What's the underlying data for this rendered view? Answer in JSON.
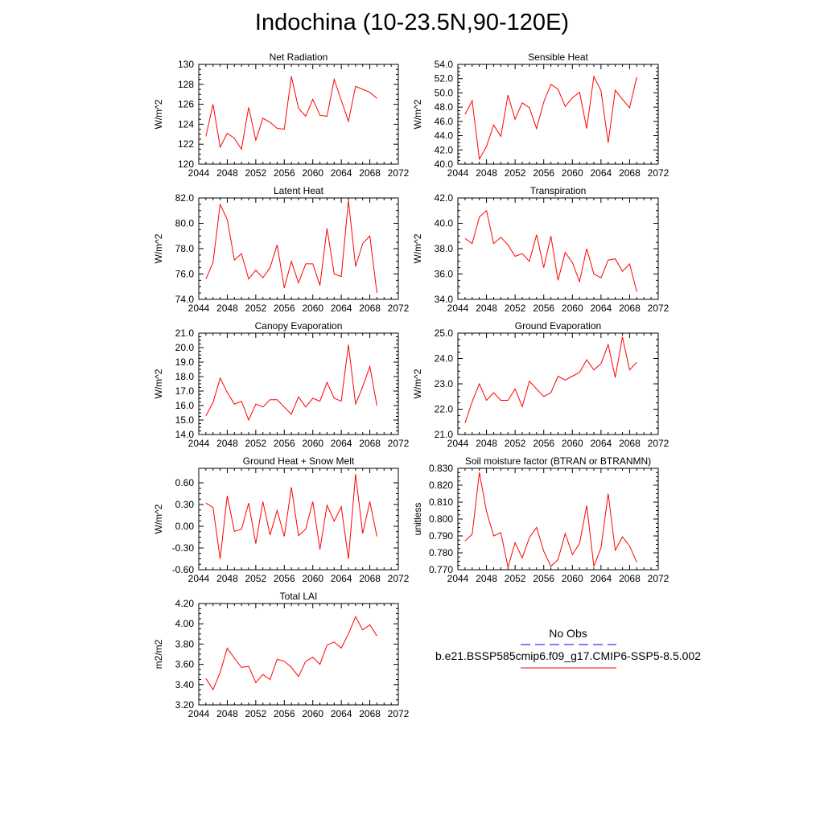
{
  "figure": {
    "title": "Indochina (10-23.5N,90-120E)",
    "legend": {
      "items": [
        {
          "label": "No Obs",
          "color": "#0000ff",
          "style": "dashed"
        },
        {
          "label": "b.e21.BSSP585cmip6.f09_g17.CMIP6-SSP5-8.5.002",
          "color": "#ff0000",
          "style": "solid"
        }
      ]
    }
  },
  "chart_data": [
    {
      "type": "line",
      "title": "Net Radiation",
      "ylabel": "W/m^2",
      "xlim": [
        2044,
        2072
      ],
      "ylim": [
        120,
        130
      ],
      "xticks": [
        2044,
        2048,
        2052,
        2056,
        2060,
        2064,
        2068,
        2072
      ],
      "yticks": [
        120,
        122,
        124,
        126,
        128,
        130
      ],
      "ytick_labels": [
        "120",
        "122",
        "124",
        "126",
        "128",
        "130"
      ],
      "x": [
        2045,
        2046,
        2047,
        2048,
        2049,
        2050,
        2051,
        2052,
        2053,
        2054,
        2055,
        2056,
        2057,
        2058,
        2059,
        2060,
        2061,
        2062,
        2063,
        2064,
        2065,
        2066,
        2067,
        2068,
        2069
      ],
      "series": [
        {
          "color": "#ff0000",
          "values": [
            122.8,
            126.0,
            121.7,
            123.1,
            122.6,
            121.5,
            125.7,
            122.4,
            124.6,
            124.2,
            123.6,
            123.5,
            128.8,
            125.6,
            124.8,
            126.5,
            124.9,
            124.8,
            128.5,
            126.4,
            124.3,
            127.8,
            127.5,
            127.2,
            126.6
          ]
        }
      ]
    },
    {
      "type": "line",
      "title": "Sensible Heat",
      "ylabel": "W/m^2",
      "xlim": [
        2044,
        2072
      ],
      "ylim": [
        40,
        54
      ],
      "xticks": [
        2044,
        2048,
        2052,
        2056,
        2060,
        2064,
        2068,
        2072
      ],
      "yticks": [
        40,
        42,
        44,
        46,
        48,
        50,
        52,
        54
      ],
      "ytick_labels": [
        "40.0",
        "42.0",
        "44.0",
        "46.0",
        "48.0",
        "50.0",
        "52.0",
        "54.0"
      ],
      "x": [
        2045,
        2046,
        2047,
        2048,
        2049,
        2050,
        2051,
        2052,
        2053,
        2054,
        2055,
        2056,
        2057,
        2058,
        2059,
        2060,
        2061,
        2062,
        2063,
        2064,
        2065,
        2066,
        2067,
        2068,
        2069
      ],
      "series": [
        {
          "color": "#ff0000",
          "values": [
            47.0,
            48.9,
            40.7,
            42.5,
            45.5,
            43.9,
            49.7,
            46.3,
            48.6,
            47.9,
            45.0,
            48.7,
            51.2,
            50.5,
            48.1,
            49.3,
            50.1,
            45.0,
            52.3,
            50.3,
            43.0,
            50.4,
            49.1,
            47.9,
            52.2
          ]
        }
      ]
    },
    {
      "type": "line",
      "title": "Latent Heat",
      "ylabel": "W/m^2",
      "xlim": [
        2044,
        2072
      ],
      "ylim": [
        74,
        82
      ],
      "xticks": [
        2044,
        2048,
        2052,
        2056,
        2060,
        2064,
        2068,
        2072
      ],
      "yticks": [
        74,
        76,
        78,
        80,
        82
      ],
      "ytick_labels": [
        "74.0",
        "76.0",
        "78.0",
        "80.0",
        "82.0"
      ],
      "x": [
        2045,
        2046,
        2047,
        2048,
        2049,
        2050,
        2051,
        2052,
        2053,
        2054,
        2055,
        2056,
        2057,
        2058,
        2059,
        2060,
        2061,
        2062,
        2063,
        2064,
        2065,
        2066,
        2067,
        2068,
        2069
      ],
      "series": [
        {
          "color": "#ff0000",
          "values": [
            75.6,
            76.9,
            81.5,
            80.3,
            77.1,
            77.6,
            75.6,
            76.3,
            75.7,
            76.5,
            78.3,
            74.9,
            77.0,
            75.3,
            76.8,
            76.8,
            75.1,
            79.6,
            76.0,
            75.8,
            81.8,
            76.6,
            78.4,
            79.0,
            74.5
          ]
        }
      ]
    },
    {
      "type": "line",
      "title": "Transpiration",
      "ylabel": "W/m^2",
      "xlim": [
        2044,
        2072
      ],
      "ylim": [
        34,
        42
      ],
      "xticks": [
        2044,
        2048,
        2052,
        2056,
        2060,
        2064,
        2068,
        2072
      ],
      "yticks": [
        34,
        36,
        38,
        40,
        42
      ],
      "ytick_labels": [
        "34.0",
        "36.0",
        "38.0",
        "40.0",
        "42.0"
      ],
      "x": [
        2045,
        2046,
        2047,
        2048,
        2049,
        2050,
        2051,
        2052,
        2053,
        2054,
        2055,
        2056,
        2057,
        2058,
        2059,
        2060,
        2061,
        2062,
        2063,
        2064,
        2065,
        2066,
        2067,
        2068,
        2069
      ],
      "series": [
        {
          "color": "#ff0000",
          "values": [
            38.8,
            38.4,
            40.5,
            41.0,
            38.4,
            38.9,
            38.3,
            37.4,
            37.6,
            37.0,
            39.1,
            36.5,
            39.0,
            35.5,
            37.7,
            36.9,
            35.4,
            38.0,
            36.0,
            35.7,
            37.1,
            37.2,
            36.2,
            36.8,
            34.6
          ]
        }
      ]
    },
    {
      "type": "line",
      "title": "Canopy Evaporation",
      "ylabel": "W/m^2",
      "xlim": [
        2044,
        2072
      ],
      "ylim": [
        14,
        21
      ],
      "xticks": [
        2044,
        2048,
        2052,
        2056,
        2060,
        2064,
        2068,
        2072
      ],
      "yticks": [
        14,
        15,
        16,
        17,
        18,
        19,
        20,
        21
      ],
      "ytick_labels": [
        "14.0",
        "15.0",
        "16.0",
        "17.0",
        "18.0",
        "19.0",
        "20.0",
        "21.0"
      ],
      "x": [
        2045,
        2046,
        2047,
        2048,
        2049,
        2050,
        2051,
        2052,
        2053,
        2054,
        2055,
        2056,
        2057,
        2058,
        2059,
        2060,
        2061,
        2062,
        2063,
        2064,
        2065,
        2066,
        2067,
        2068,
        2069
      ],
      "series": [
        {
          "color": "#ff0000",
          "values": [
            15.3,
            16.2,
            17.9,
            16.9,
            16.1,
            16.3,
            15.0,
            16.1,
            15.9,
            16.4,
            16.4,
            15.9,
            15.4,
            16.6,
            15.9,
            16.5,
            16.3,
            17.6,
            16.5,
            16.3,
            20.2,
            16.1,
            17.3,
            18.7,
            16.0
          ]
        }
      ]
    },
    {
      "type": "line",
      "title": "Ground Evaporation",
      "ylabel": "W/m^2",
      "xlim": [
        2044,
        2072
      ],
      "ylim": [
        21,
        25
      ],
      "xticks": [
        2044,
        2048,
        2052,
        2056,
        2060,
        2064,
        2068,
        2072
      ],
      "yticks": [
        21,
        22,
        23,
        24,
        25
      ],
      "ytick_labels": [
        "21.0",
        "22.0",
        "23.0",
        "24.0",
        "25.0"
      ],
      "x": [
        2045,
        2046,
        2047,
        2048,
        2049,
        2050,
        2051,
        2052,
        2053,
        2054,
        2055,
        2056,
        2057,
        2058,
        2059,
        2060,
        2061,
        2062,
        2063,
        2064,
        2065,
        2066,
        2067,
        2068,
        2069
      ],
      "series": [
        {
          "color": "#ff0000",
          "values": [
            21.45,
            22.3,
            23.0,
            22.35,
            22.65,
            22.35,
            22.35,
            22.8,
            22.1,
            23.1,
            22.8,
            22.5,
            22.65,
            23.3,
            23.15,
            23.3,
            23.45,
            23.95,
            23.55,
            23.8,
            24.55,
            23.25,
            24.85,
            23.55,
            23.85
          ]
        }
      ]
    },
    {
      "type": "line",
      "title": "Ground Heat + Snow Melt",
      "ylabel": "W/m^2",
      "xlim": [
        2044,
        2072
      ],
      "ylim": [
        -0.6,
        0.8
      ],
      "xticks": [
        2044,
        2048,
        2052,
        2056,
        2060,
        2064,
        2068,
        2072
      ],
      "yticks": [
        -0.6,
        -0.3,
        0.0,
        0.3,
        0.6
      ],
      "ytick_labels": [
        "-0.60",
        "-0.30",
        "0.00",
        "0.30",
        "0.60"
      ],
      "x": [
        2045,
        2046,
        2047,
        2048,
        2049,
        2050,
        2051,
        2052,
        2053,
        2054,
        2055,
        2056,
        2057,
        2058,
        2059,
        2060,
        2061,
        2062,
        2063,
        2064,
        2065,
        2066,
        2067,
        2068,
        2069
      ],
      "series": [
        {
          "color": "#ff0000",
          "values": [
            0.32,
            0.26,
            -0.45,
            0.42,
            -0.07,
            -0.04,
            0.32,
            -0.24,
            0.34,
            -0.12,
            0.22,
            -0.14,
            0.54,
            -0.13,
            -0.04,
            0.34,
            -0.32,
            0.29,
            0.07,
            0.27,
            -0.45,
            0.72,
            -0.1,
            0.34,
            -0.14
          ]
        }
      ]
    },
    {
      "type": "line",
      "title": "Soil moisture factor (BTRAN or BTRANMN)",
      "ylabel": "unitless",
      "xlim": [
        2044,
        2072
      ],
      "ylim": [
        0.77,
        0.83
      ],
      "xticks": [
        2044,
        2048,
        2052,
        2056,
        2060,
        2064,
        2068,
        2072
      ],
      "yticks": [
        0.77,
        0.78,
        0.79,
        0.8,
        0.81,
        0.82,
        0.83
      ],
      "ytick_labels": [
        "0.770",
        "0.780",
        "0.790",
        "0.800",
        "0.810",
        "0.820",
        "0.830"
      ],
      "x": [
        2045,
        2046,
        2047,
        2048,
        2049,
        2050,
        2051,
        2052,
        2053,
        2054,
        2055,
        2056,
        2057,
        2058,
        2059,
        2060,
        2061,
        2062,
        2063,
        2064,
        2065,
        2066,
        2067,
        2068,
        2069
      ],
      "series": [
        {
          "color": "#ff0000",
          "values": [
            0.787,
            0.791,
            0.8275,
            0.8045,
            0.79,
            0.792,
            0.7715,
            0.786,
            0.777,
            0.789,
            0.795,
            0.781,
            0.772,
            0.776,
            0.7915,
            0.779,
            0.7855,
            0.808,
            0.772,
            0.783,
            0.815,
            0.7815,
            0.7895,
            0.784,
            0.7745
          ]
        }
      ]
    },
    {
      "type": "line",
      "title": "Total LAI",
      "ylabel": "m2/m2",
      "xlim": [
        2044,
        2072
      ],
      "ylim": [
        3.2,
        4.2
      ],
      "xticks": [
        2044,
        2048,
        2052,
        2056,
        2060,
        2064,
        2068,
        2072
      ],
      "yticks": [
        3.2,
        3.4,
        3.6,
        3.8,
        4.0,
        4.2
      ],
      "ytick_labels": [
        "3.20",
        "3.40",
        "3.60",
        "3.80",
        "4.00",
        "4.20"
      ],
      "x": [
        2045,
        2046,
        2047,
        2048,
        2049,
        2050,
        2051,
        2052,
        2053,
        2054,
        2055,
        2056,
        2057,
        2058,
        2059,
        2060,
        2061,
        2062,
        2063,
        2064,
        2065,
        2066,
        2067,
        2068,
        2069
      ],
      "series": [
        {
          "color": "#ff0000",
          "values": [
            3.46,
            3.35,
            3.52,
            3.76,
            3.66,
            3.57,
            3.58,
            3.42,
            3.5,
            3.45,
            3.65,
            3.63,
            3.57,
            3.48,
            3.63,
            3.67,
            3.6,
            3.79,
            3.82,
            3.76,
            3.9,
            4.07,
            3.94,
            3.99,
            3.88
          ]
        }
      ]
    }
  ]
}
